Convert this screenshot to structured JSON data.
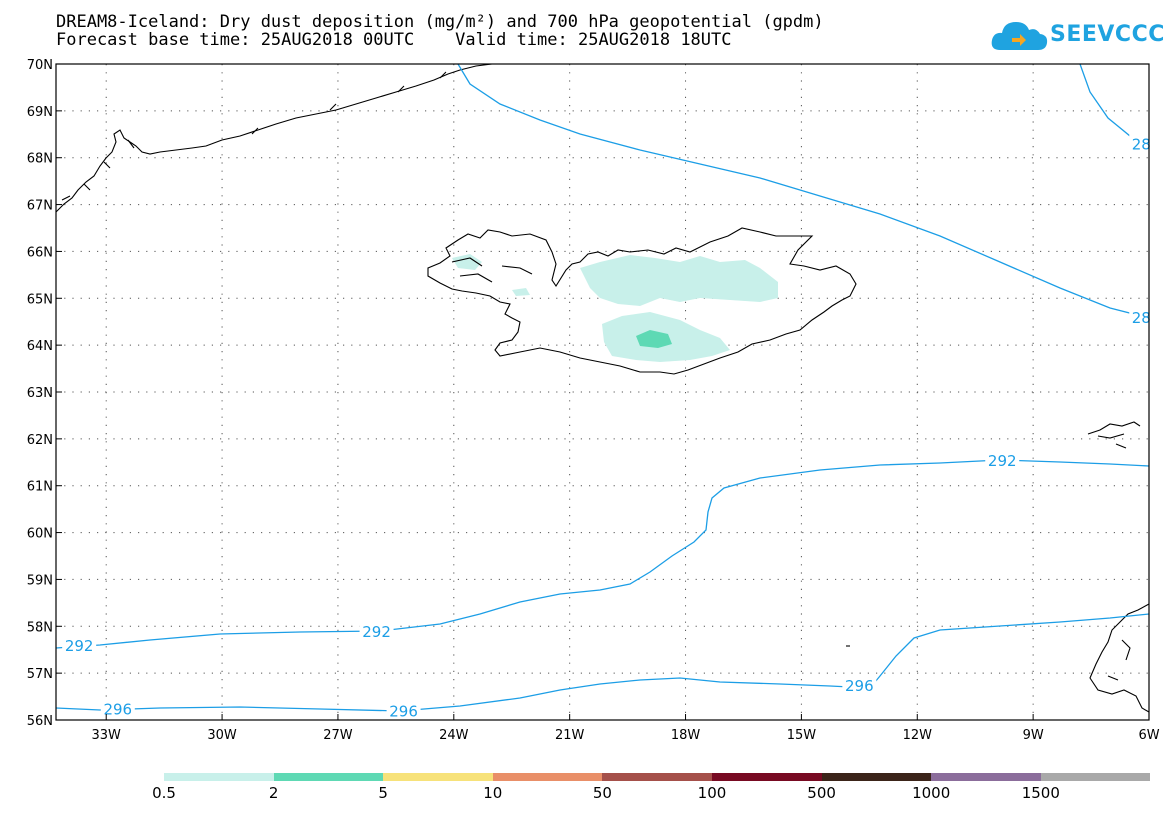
{
  "title_line1": "DREAM8-Iceland: Dry dust deposition (mg/m²) and 700 hPa geopotential (gpdm)",
  "title_line2": "Forecast base time: 25AUG2018 00UTC    Valid time: 25AUG2018 18UTC",
  "logo_text": "SEEVCCC",
  "colors": {
    "contour": "#1c9ee6",
    "coast": "#000000",
    "logo": "#1fa3e0"
  },
  "map": {
    "projection": "lat-lon",
    "lon_range": [
      -34.3,
      -6
    ],
    "lat_range": [
      56,
      70
    ],
    "lat_labels": [
      "70N",
      "69N",
      "68N",
      "67N",
      "66N",
      "65N",
      "64N",
      "63N",
      "62N",
      "61N",
      "60N",
      "59N",
      "58N",
      "57N",
      "56N"
    ],
    "lon_labels": [
      "33W",
      "30W",
      "27W",
      "24W",
      "21W",
      "18W",
      "15W",
      "12W",
      "9W",
      "6W"
    ],
    "gridlines": "dotted",
    "contour_labels": [
      {
        "text": "28",
        "lon": -6.2,
        "lat": 68.3
      },
      {
        "text": "28",
        "lon": -6.2,
        "lat": 64.6
      },
      {
        "text": "292",
        "lon": -9.8,
        "lat": 61.55
      },
      {
        "text": "292",
        "lon": -33.7,
        "lat": 57.6
      },
      {
        "text": "292",
        "lon": -26.0,
        "lat": 57.9
      },
      {
        "text": "296",
        "lon": -32.7,
        "lat": 56.25
      },
      {
        "text": "296",
        "lon": -25.3,
        "lat": 56.2
      },
      {
        "text": "296",
        "lon": -13.5,
        "lat": 56.75
      }
    ]
  },
  "legend": {
    "colors": [
      "#c8f0ea",
      "#5ed9b4",
      "#f7e27a",
      "#e98f68",
      "#a5504a",
      "#780a22",
      "#3b2419",
      "#8b6d9b",
      "#a9a9a9"
    ],
    "labels": [
      "0.5",
      "2",
      "5",
      "10",
      "50",
      "100",
      "500",
      "1000",
      "1500"
    ]
  }
}
